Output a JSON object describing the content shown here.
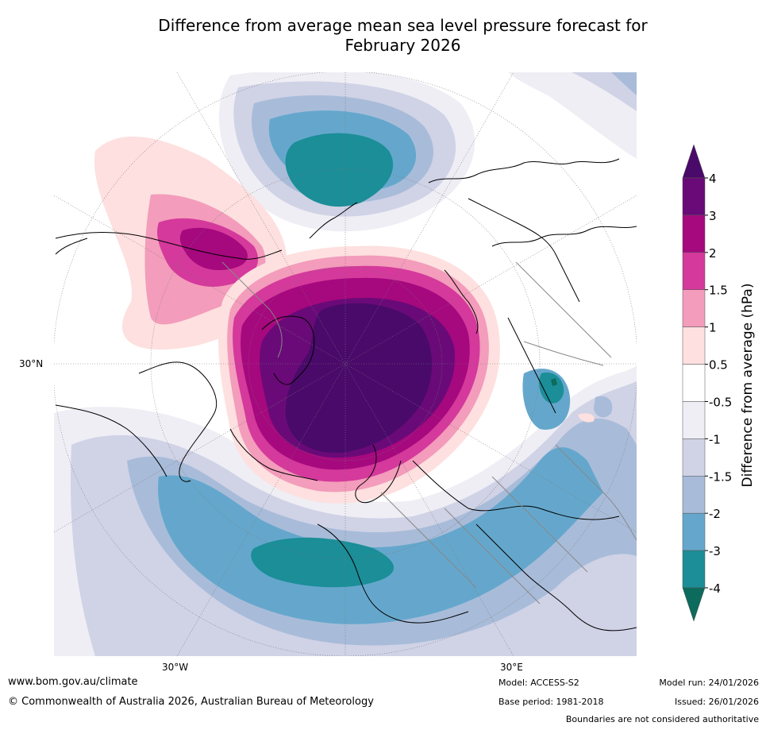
{
  "title": {
    "line1": "Difference from average mean sea level pressure forecast for",
    "line2": "February 2026"
  },
  "map": {
    "labels": {
      "lat_30n": "30°N",
      "lon_30w": "30°W",
      "lon_30e": "30°E"
    }
  },
  "colorbar": {
    "label": "Difference from average (hPa)",
    "ticks": [
      "4",
      "3",
      "2",
      "1.5",
      "1",
      "0.5",
      "-0.5",
      "-1",
      "-1.5",
      "-2",
      "-3",
      "-4"
    ],
    "colors": {
      "over": "#4a0a6a",
      "3_4": "#6a0a78",
      "2_3": "#a6087e",
      "1.5_2": "#d4399b",
      "1_1.5": "#f39cbb",
      "0.5_1": "#fde0df",
      "neutral": "#ffffff",
      "m1_m0.5": "#efeef5",
      "m1.5_m1": "#d0d2e6",
      "m2_m1.5": "#a8bcd9",
      "m3_m2": "#65a7cc",
      "m4_m3": "#1b8e98",
      "under": "#0c6b5c"
    }
  },
  "footer": {
    "website": "www.bom.gov.au/climate",
    "copyright": "© Commonwealth of Australia 2026, Australian Bureau of Meteorology",
    "model": "Model: ACCESS-S2",
    "base_period": "Base period: 1981-2018",
    "model_run": "Model run: 24/01/2026",
    "issued": "Issued: 26/01/2026",
    "disclaimer": "Boundaries are not considered authoritative"
  }
}
